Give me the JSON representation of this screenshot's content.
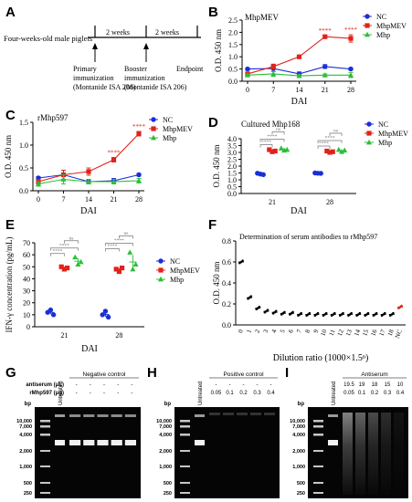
{
  "panel_letters": [
    "A",
    "B",
    "C",
    "D",
    "E",
    "F",
    "G",
    "H",
    "I"
  ],
  "timeline": {
    "start_label": "Four-weeks-old male piglets",
    "interval1": "2 weeks",
    "interval2": "2 weeks",
    "primary_line1": "Primary",
    "primary_line2": "immunization",
    "primary_line3": "(Montanide ISA 206)",
    "booster_line1": "Booster",
    "booster_line2": "immunization",
    "booster_line3": "(Montanide ISA 206)",
    "endpoint": "Endpoint"
  },
  "colors": {
    "NC": "#1a2fd6",
    "MhpMEV": "#e0231a",
    "Mhp": "#2bbf3a",
    "sig": "#777777"
  },
  "chart_data": [
    {
      "id": "B",
      "type": "line",
      "title": "MhpMEV",
      "xlabel": "DAI",
      "ylabel": "O.D. 450 nm",
      "x": [
        0,
        7,
        14,
        21,
        28
      ],
      "ylim": [
        0,
        2.5
      ],
      "yticks": [
        "0.0",
        "0.5",
        "1.0",
        "1.5",
        "2.0",
        "2.5"
      ],
      "series": [
        {
          "name": "NC",
          "values": [
            0.5,
            0.52,
            0.3,
            0.6,
            0.5
          ],
          "err": [
            0.05,
            0.12,
            0.08,
            0.08,
            0.05
          ]
        },
        {
          "name": "MhpMEV",
          "values": [
            0.3,
            0.6,
            1.0,
            1.82,
            1.75
          ],
          "err": [
            0.05,
            0.1,
            0.05,
            0.05,
            0.15
          ]
        },
        {
          "name": "Mhp",
          "values": [
            0.25,
            0.3,
            0.22,
            0.25,
            0.25
          ],
          "err": [
            0.05,
            0.1,
            0.05,
            0.05,
            0.1
          ]
        }
      ],
      "sig": [
        {
          "x": 21,
          "series": "MhpMEV",
          "label": "****"
        },
        {
          "x": 28,
          "series": "MhpMEV",
          "label": "****"
        }
      ]
    },
    {
      "id": "C",
      "type": "line",
      "title": "rMhp597",
      "xlabel": "DAI",
      "ylabel": "O.D. 450 nm",
      "x": [
        0,
        7,
        14,
        21,
        28
      ],
      "ylim": [
        0,
        1.5
      ],
      "yticks": [
        "0.0",
        "0.5",
        "1.0",
        "1.5"
      ],
      "series": [
        {
          "name": "NC",
          "values": [
            0.28,
            0.35,
            0.2,
            0.22,
            0.35
          ],
          "err": [
            0.03,
            0.1,
            0.05,
            0.05,
            0.03
          ]
        },
        {
          "name": "MhpMEV",
          "values": [
            0.2,
            0.35,
            0.42,
            0.68,
            1.25
          ],
          "err": [
            0.05,
            0.1,
            0.08,
            0.05,
            0.05
          ]
        },
        {
          "name": "Mhp",
          "values": [
            0.15,
            0.25,
            0.2,
            0.2,
            0.22
          ],
          "err": [
            0.05,
            0.1,
            0.05,
            0.05,
            0.05
          ]
        }
      ],
      "sig": [
        {
          "x": 21,
          "series": "MhpMEV",
          "label": "****"
        },
        {
          "x": 28,
          "series": "MhpMEV",
          "label": "****"
        }
      ]
    },
    {
      "id": "D",
      "type": "scatter",
      "title": "Cultured Mhp168",
      "xlabel": "DAI",
      "ylabel": "O.D. 450 nm",
      "categories": [
        "21",
        "28"
      ],
      "ylim": [
        0,
        4.0
      ],
      "yticks": [
        "0.0",
        "0.5",
        "1.0",
        "1.5",
        "2.0",
        "2.5",
        "3.0",
        "3.5",
        "4.0"
      ],
      "series": [
        {
          "name": "NC",
          "values": [
            [
              1.48,
              1.42,
              1.38
            ],
            [
              1.5,
              1.48,
              1.47
            ]
          ]
        },
        {
          "name": "MhpMEV",
          "values": [
            [
              3.2,
              3.05,
              3.1
            ],
            [
              3.1,
              3.0,
              3.05
            ]
          ]
        },
        {
          "name": "Mhp",
          "values": [
            [
              3.3,
              3.15,
              3.2
            ],
            [
              3.2,
              3.05,
              3.15
            ]
          ]
        }
      ],
      "brackets": [
        {
          "from": "NC",
          "to": "MhpMEV",
          "label": "****"
        },
        {
          "from": "NC",
          "to": "Mhp",
          "label": "****"
        },
        {
          "from": "MhpMEV",
          "to": "Mhp",
          "label": "ns"
        }
      ]
    },
    {
      "id": "E",
      "type": "scatter",
      "title": "",
      "xlabel": "DAI",
      "ylabel": "IFN-γ concentration (pg/mL)",
      "categories": [
        "21",
        "28"
      ],
      "ylim": [
        0,
        70
      ],
      "yticks": [
        "0",
        "10",
        "20",
        "30",
        "40",
        "50",
        "60",
        "70"
      ],
      "series": [
        {
          "name": "NC",
          "values": [
            [
              12,
              14,
              10
            ],
            [
              10,
              13,
              8
            ]
          ]
        },
        {
          "name": "MhpMEV",
          "values": [
            [
              50,
              48,
              49
            ],
            [
              48,
              46,
              49
            ]
          ]
        },
        {
          "name": "Mhp",
          "values": [
            [
              58,
              52,
              54
            ],
            [
              62,
              48,
              52
            ]
          ]
        }
      ],
      "brackets": [
        {
          "from": "NC",
          "to": "MhpMEV",
          "label": "****"
        },
        {
          "from": "NC",
          "to": "Mhp",
          "label": "****"
        },
        {
          "from": "MhpMEV",
          "to": "Mhp",
          "label": "ns"
        }
      ]
    },
    {
      "id": "F",
      "type": "scatter",
      "title": "Determination of serum antibodies to rMhp597",
      "xlabel": "Dilution ratio (1000×1.5ⁿ)",
      "ylabel": "O.D. 450 nm",
      "categories": [
        "0",
        "1",
        "2",
        "3",
        "4",
        "5",
        "6",
        "7",
        "8",
        "9",
        "10",
        "11",
        "12",
        "13",
        "14",
        "15",
        "16",
        "17",
        "18",
        "NC"
      ],
      "ylim": [
        0,
        0.8
      ],
      "yticks": [
        "0.0",
        "0.2",
        "0.4",
        "0.6",
        "0.8"
      ],
      "values": [
        0.6,
        0.26,
        0.16,
        0.13,
        0.12,
        0.11,
        0.11,
        0.1,
        0.1,
        0.1,
        0.1,
        0.1,
        0.1,
        0.1,
        0.1,
        0.1,
        0.1,
        0.1,
        0.1,
        0.17
      ]
    }
  ],
  "gels": [
    {
      "id": "G",
      "title": "Negative control",
      "rows": [
        {
          "label": "antiserum (μL)",
          "cells": [
            "-",
            "-",
            "-",
            "-",
            "-"
          ]
        },
        {
          "label": "rMhp597 (μg)",
          "cells": [
            "-",
            "-",
            "-",
            "-",
            "-"
          ]
        }
      ],
      "untreated": "Untreated",
      "bp_title": "bp",
      "markers": [
        "10,000",
        "7,000",
        "4,000",
        "2,000",
        "1,000",
        "500",
        "250"
      ]
    },
    {
      "id": "H",
      "title": "Positive control",
      "rows": [
        {
          "label": "",
          "cells": [
            "-",
            "-",
            "-",
            "-",
            "-"
          ]
        },
        {
          "label": "",
          "cells": [
            "0.05",
            "0.1",
            "0.2",
            "0.3",
            "0.4"
          ]
        }
      ],
      "untreated": "Untreated",
      "bp_title": "bp",
      "markers": [
        "10,000",
        "7,000",
        "4,000",
        "2,000",
        "1,000",
        "500",
        "250"
      ]
    },
    {
      "id": "I",
      "title": "Antiserum",
      "rows": [
        {
          "label": "",
          "cells": [
            "19.5",
            "19",
            "18",
            "15",
            "10"
          ]
        },
        {
          "label": "",
          "cells": [
            "0.05",
            "0.1",
            "0.2",
            "0.3",
            "0.4"
          ]
        }
      ],
      "untreated": "Untreated",
      "bp_title": "bp",
      "markers": [
        "10,000",
        "7,000",
        "4,000",
        "2,000",
        "1,000",
        "500",
        "250"
      ]
    }
  ]
}
